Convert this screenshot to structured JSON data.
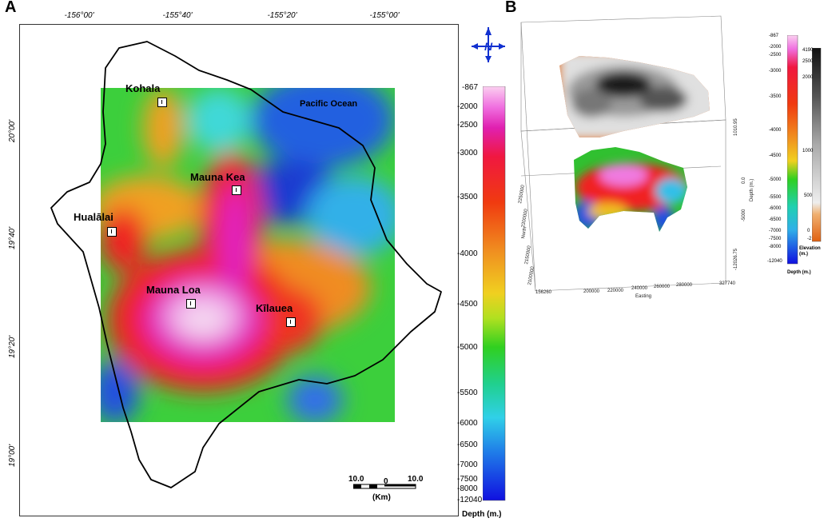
{
  "panel_a": {
    "label": "A",
    "lon_ticks": [
      "-156°00'",
      "-155°40'",
      "-155°20'",
      "-155°00'"
    ],
    "lat_ticks": [
      "20°00'",
      "19°40'",
      "19°20'",
      "19°00'"
    ],
    "places": {
      "kohala": "Kohala",
      "mauna_kea": "Mauna Kea",
      "hualalai": "Hualālai",
      "mauna_loa": "Mauna Loa",
      "kilauea": "Kīlauea",
      "ocean": "Pacific Ocean"
    },
    "north_label": "N",
    "scale_bar": {
      "left": "10.0",
      "mid": "0",
      "right": "10.0",
      "unit": "(Km)"
    },
    "colorbar": {
      "title": "Depth (m.)",
      "labels": [
        "-867",
        "-2000",
        "-2500",
        "-3000",
        "-3500",
        "-4000",
        "-4500",
        "-5000",
        "-5500",
        "-6000",
        "-6500",
        "-7000",
        "-7500",
        "-8000",
        "-12040"
      ]
    }
  },
  "panel_b": {
    "label": "B",
    "easting_ticks": [
      "156260",
      "200000",
      "220000",
      "240000",
      "260000",
      "280000",
      "327740"
    ],
    "easting_label": "Easting",
    "depth_axis": [
      "1010.95",
      "0.0",
      "-5000",
      "-12026.75"
    ],
    "depth_label": "Depth (m.)",
    "northing_ticks": [
      "2100000",
      "2150000",
      "2200000",
      "2250000"
    ],
    "northing_label": "North",
    "depth_colorbar": {
      "title": "Depth (m.)",
      "labels": [
        "-867",
        "-2000",
        "-2500",
        "-3000",
        "-3500",
        "-4000",
        "-4500",
        "-5000",
        "-5500",
        "-6000",
        "-6500",
        "-7000",
        "-7500",
        "-8000",
        "-12040"
      ]
    },
    "elevation_colorbar": {
      "title": "Elevation (m.)",
      "labels": [
        "4190",
        "2500",
        "2000",
        "1000",
        "500",
        "0",
        "-2"
      ]
    }
  }
}
